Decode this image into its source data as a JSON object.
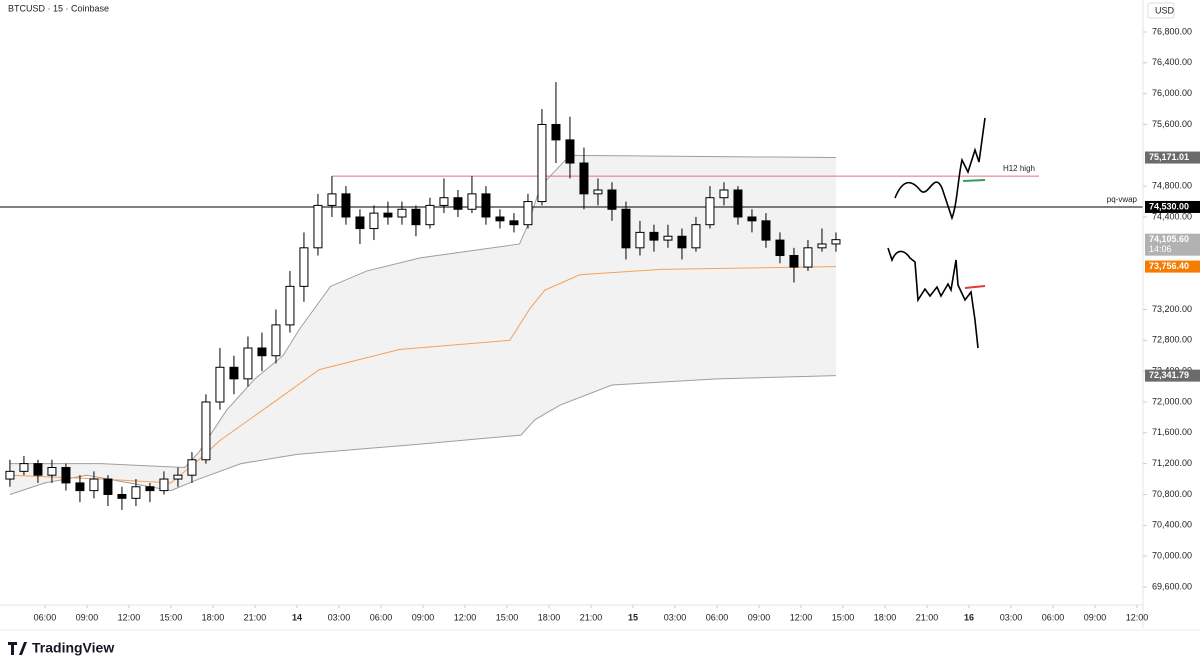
{
  "chart_data": {
    "type": "candlestick",
    "title": "BTCUSD · 15 · Coinbase",
    "currency": "USD",
    "brand": "TradingView",
    "xlim": [
      2.79,
      84.43
    ],
    "ylim": [
      69366,
      77215
    ],
    "xticks": [
      {
        "value": 6,
        "label": "06:00"
      },
      {
        "value": 9,
        "label": "09:00"
      },
      {
        "value": 12,
        "label": "12:00"
      },
      {
        "value": 15,
        "label": "15:00"
      },
      {
        "value": 18,
        "label": "18:00"
      },
      {
        "value": 21,
        "label": "21:00"
      },
      {
        "value": 24,
        "label": "14"
      },
      {
        "value": 27,
        "label": "03:00"
      },
      {
        "value": 30,
        "label": "06:00"
      },
      {
        "value": 33,
        "label": "09:00"
      },
      {
        "value": 36,
        "label": "12:00"
      },
      {
        "value": 39,
        "label": "15:00"
      },
      {
        "value": 42,
        "label": "18:00"
      },
      {
        "value": 45,
        "label": "21:00"
      },
      {
        "value": 48,
        "label": "15"
      },
      {
        "value": 51,
        "label": "03:00"
      },
      {
        "value": 54,
        "label": "06:00"
      },
      {
        "value": 57,
        "label": "09:00"
      },
      {
        "value": 60,
        "label": "12:00"
      },
      {
        "value": 63,
        "label": "15:00"
      },
      {
        "value": 66,
        "label": "18:00"
      },
      {
        "value": 69,
        "label": "21:00"
      },
      {
        "value": 72,
        "label": "16"
      },
      {
        "value": 75,
        "label": "03:00"
      },
      {
        "value": 78,
        "label": "06:00"
      },
      {
        "value": 81,
        "label": "09:00"
      },
      {
        "value": 84,
        "label": "12:00"
      }
    ],
    "yticks": [
      {
        "value": 69600,
        "label": "69,600.00"
      },
      {
        "value": 70000,
        "label": "70,000.00"
      },
      {
        "value": 70400,
        "label": "70,400.00"
      },
      {
        "value": 70800,
        "label": "70,800.00"
      },
      {
        "value": 71200,
        "label": "71,200.00"
      },
      {
        "value": 71600,
        "label": "71,600.00"
      },
      {
        "value": 72000,
        "label": "72,000.00"
      },
      {
        "value": 72400,
        "label": "72,400.00"
      },
      {
        "value": 72800,
        "label": "72,800.00"
      },
      {
        "value": 73200,
        "label": "73,200.00"
      },
      {
        "value": 74400,
        "label": "74,400.00"
      },
      {
        "value": 74800,
        "label": "74,800.00"
      },
      {
        "value": 75600,
        "label": "75,600.00"
      },
      {
        "value": 76000,
        "label": "76,000.00"
      },
      {
        "value": 76400,
        "label": "76,400.00"
      },
      {
        "value": 76800,
        "label": "76,800.00"
      }
    ],
    "up_color": "#ffffff",
    "down_color": "#000000",
    "x": [
      3.5,
      4.5,
      5.5,
      6.5,
      7.5,
      8.5,
      9.5,
      10.5,
      11.5,
      12.5,
      13.5,
      14.5,
      15.5,
      16.5,
      17.5,
      18.5,
      19.5,
      20.5,
      21.5,
      22.5,
      23.5,
      24.5,
      25.5,
      26.5,
      27.5,
      28.5,
      29.5,
      30.5,
      31.5,
      32.5,
      33.5,
      34.5,
      35.5,
      36.5,
      37.5,
      38.5,
      39.5,
      40.5,
      41.5,
      42.5,
      43.5,
      44.5,
      45.5,
      46.5,
      47.5,
      48.5,
      49.5,
      50.5,
      51.5,
      52.5,
      53.5,
      54.5,
      55.5,
      56.5,
      57.5,
      58.5,
      59.5,
      60.5,
      61.5,
      62.5
    ],
    "open": [
      71000,
      71100,
      71200,
      71050,
      71150,
      70950,
      70850,
      71000,
      70800,
      70750,
      70900,
      70850,
      71000,
      71050,
      71250,
      72000,
      72450,
      72300,
      72700,
      72600,
      73000,
      73500,
      74000,
      74550,
      74700,
      74400,
      74250,
      74450,
      74400,
      74500,
      74300,
      74550,
      74650,
      74500,
      74700,
      74400,
      74350,
      74300,
      74600,
      75600,
      75400,
      75100,
      74700,
      74750,
      74500,
      74000,
      74200,
      74100,
      74150,
      74000,
      74300,
      74650,
      74750,
      74400,
      74350,
      74100,
      73900,
      73750,
      74000,
      74050
    ],
    "high": [
      71250,
      71300,
      71250,
      71250,
      71200,
      71050,
      71100,
      71050,
      70900,
      71000,
      70950,
      71100,
      71150,
      71350,
      72100,
      72700,
      72600,
      72850,
      72900,
      73200,
      73700,
      74200,
      74700,
      74930,
      74800,
      74500,
      74550,
      74600,
      74600,
      74550,
      74650,
      74900,
      74750,
      74930,
      74800,
      74500,
      74450,
      74700,
      75800,
      76150,
      75700,
      75300,
      74900,
      74850,
      74600,
      74350,
      74300,
      74300,
      74250,
      74400,
      74800,
      74850,
      74800,
      74500,
      74450,
      74200,
      74000,
      74100,
      74250,
      74200
    ],
    "low": [
      70900,
      71050,
      70950,
      70950,
      70850,
      70700,
      70750,
      70650,
      70600,
      70650,
      70700,
      70800,
      70900,
      70950,
      71200,
      71900,
      72100,
      72200,
      72400,
      72500,
      72900,
      73300,
      73900,
      74400,
      74300,
      74050,
      74100,
      74300,
      74300,
      74150,
      74250,
      74450,
      74400,
      74450,
      74300,
      74250,
      74200,
      74250,
      74550,
      75100,
      74900,
      74500,
      74550,
      74350,
      73850,
      73900,
      73950,
      74000,
      73850,
      73950,
      74250,
      74550,
      74300,
      74200,
      74000,
      73800,
      73550,
      73700,
      73950,
      73950
    ],
    "close": [
      71100,
      71200,
      71050,
      71150,
      70950,
      70850,
      71000,
      70800,
      70750,
      70900,
      70850,
      71000,
      71050,
      71250,
      72000,
      72450,
      72300,
      72700,
      72600,
      73000,
      73500,
      74000,
      74550,
      74700,
      74400,
      74250,
      74450,
      74400,
      74500,
      74300,
      74550,
      74650,
      74500,
      74700,
      74400,
      74350,
      74300,
      74600,
      75600,
      75400,
      75100,
      74700,
      74750,
      74500,
      74000,
      74200,
      74100,
      74150,
      74000,
      74300,
      74650,
      74750,
      74400,
      74350,
      74100,
      73900,
      73750,
      74000,
      74050,
      74105.6
    ],
    "lines": [
      {
        "color": "#9e9e9e",
        "x": [
          3.5,
          10,
          16,
          17,
          19,
          21,
          23,
          24.2,
          26.4,
          29,
          32.8,
          36,
          39.9,
          40.5,
          41.4,
          43.5,
          50,
          62.5
        ],
        "values": [
          71200,
          71200,
          71150,
          71350,
          71900,
          72300,
          72600,
          72950,
          73500,
          73700,
          73870,
          73950,
          74050,
          74300,
          74800,
          75200,
          75190,
          75171.01
        ]
      },
      {
        "color": "#9e9e9e",
        "x": [
          3.5,
          6,
          9,
          12,
          15,
          17,
          20,
          24,
          32.6,
          40,
          41,
          42.8,
          46.5,
          54,
          62.5
        ],
        "values": [
          70800,
          70950,
          71050,
          70950,
          70850,
          71000,
          71200,
          71320,
          71450,
          71570,
          71770,
          71960,
          72220,
          72300,
          72341.79
        ]
      },
      {
        "color": "#f5a05a",
        "x": [
          3.5,
          10,
          15,
          17,
          18.5,
          22.6,
          25.6,
          31.3,
          39.2,
          40.6,
          41.7,
          44.2,
          50,
          62.5
        ],
        "values": [
          71050,
          71000,
          70950,
          71250,
          71500,
          72030,
          72420,
          72680,
          72800,
          73200,
          73450,
          73650,
          73720,
          73756.4
        ]
      }
    ],
    "band_fill": "#f2f2f2",
    "hlines": [
      {
        "name": "H12 high",
        "value": 74930,
        "color": "#e8707e",
        "x": [
          26.5,
          77
        ]
      },
      {
        "name": "pq-vwap",
        "value": 74530,
        "color": "#000000"
      }
    ],
    "price_tags": [
      {
        "value": 75171.01,
        "label": "75,171.01",
        "color": "#6b6b6b"
      },
      {
        "value": 74530,
        "label": "74,530.00",
        "color": "#000000"
      },
      {
        "value": 74105.6,
        "label": "74,105.60",
        "color": "#b2b2b2",
        "countdown": "14:06"
      },
      {
        "value": 73756.4,
        "label": "73,756.40",
        "color": "#f57c00"
      },
      {
        "value": 72341.79,
        "label": "72,341.79",
        "color": "#6b6b6b"
      }
    ]
  }
}
